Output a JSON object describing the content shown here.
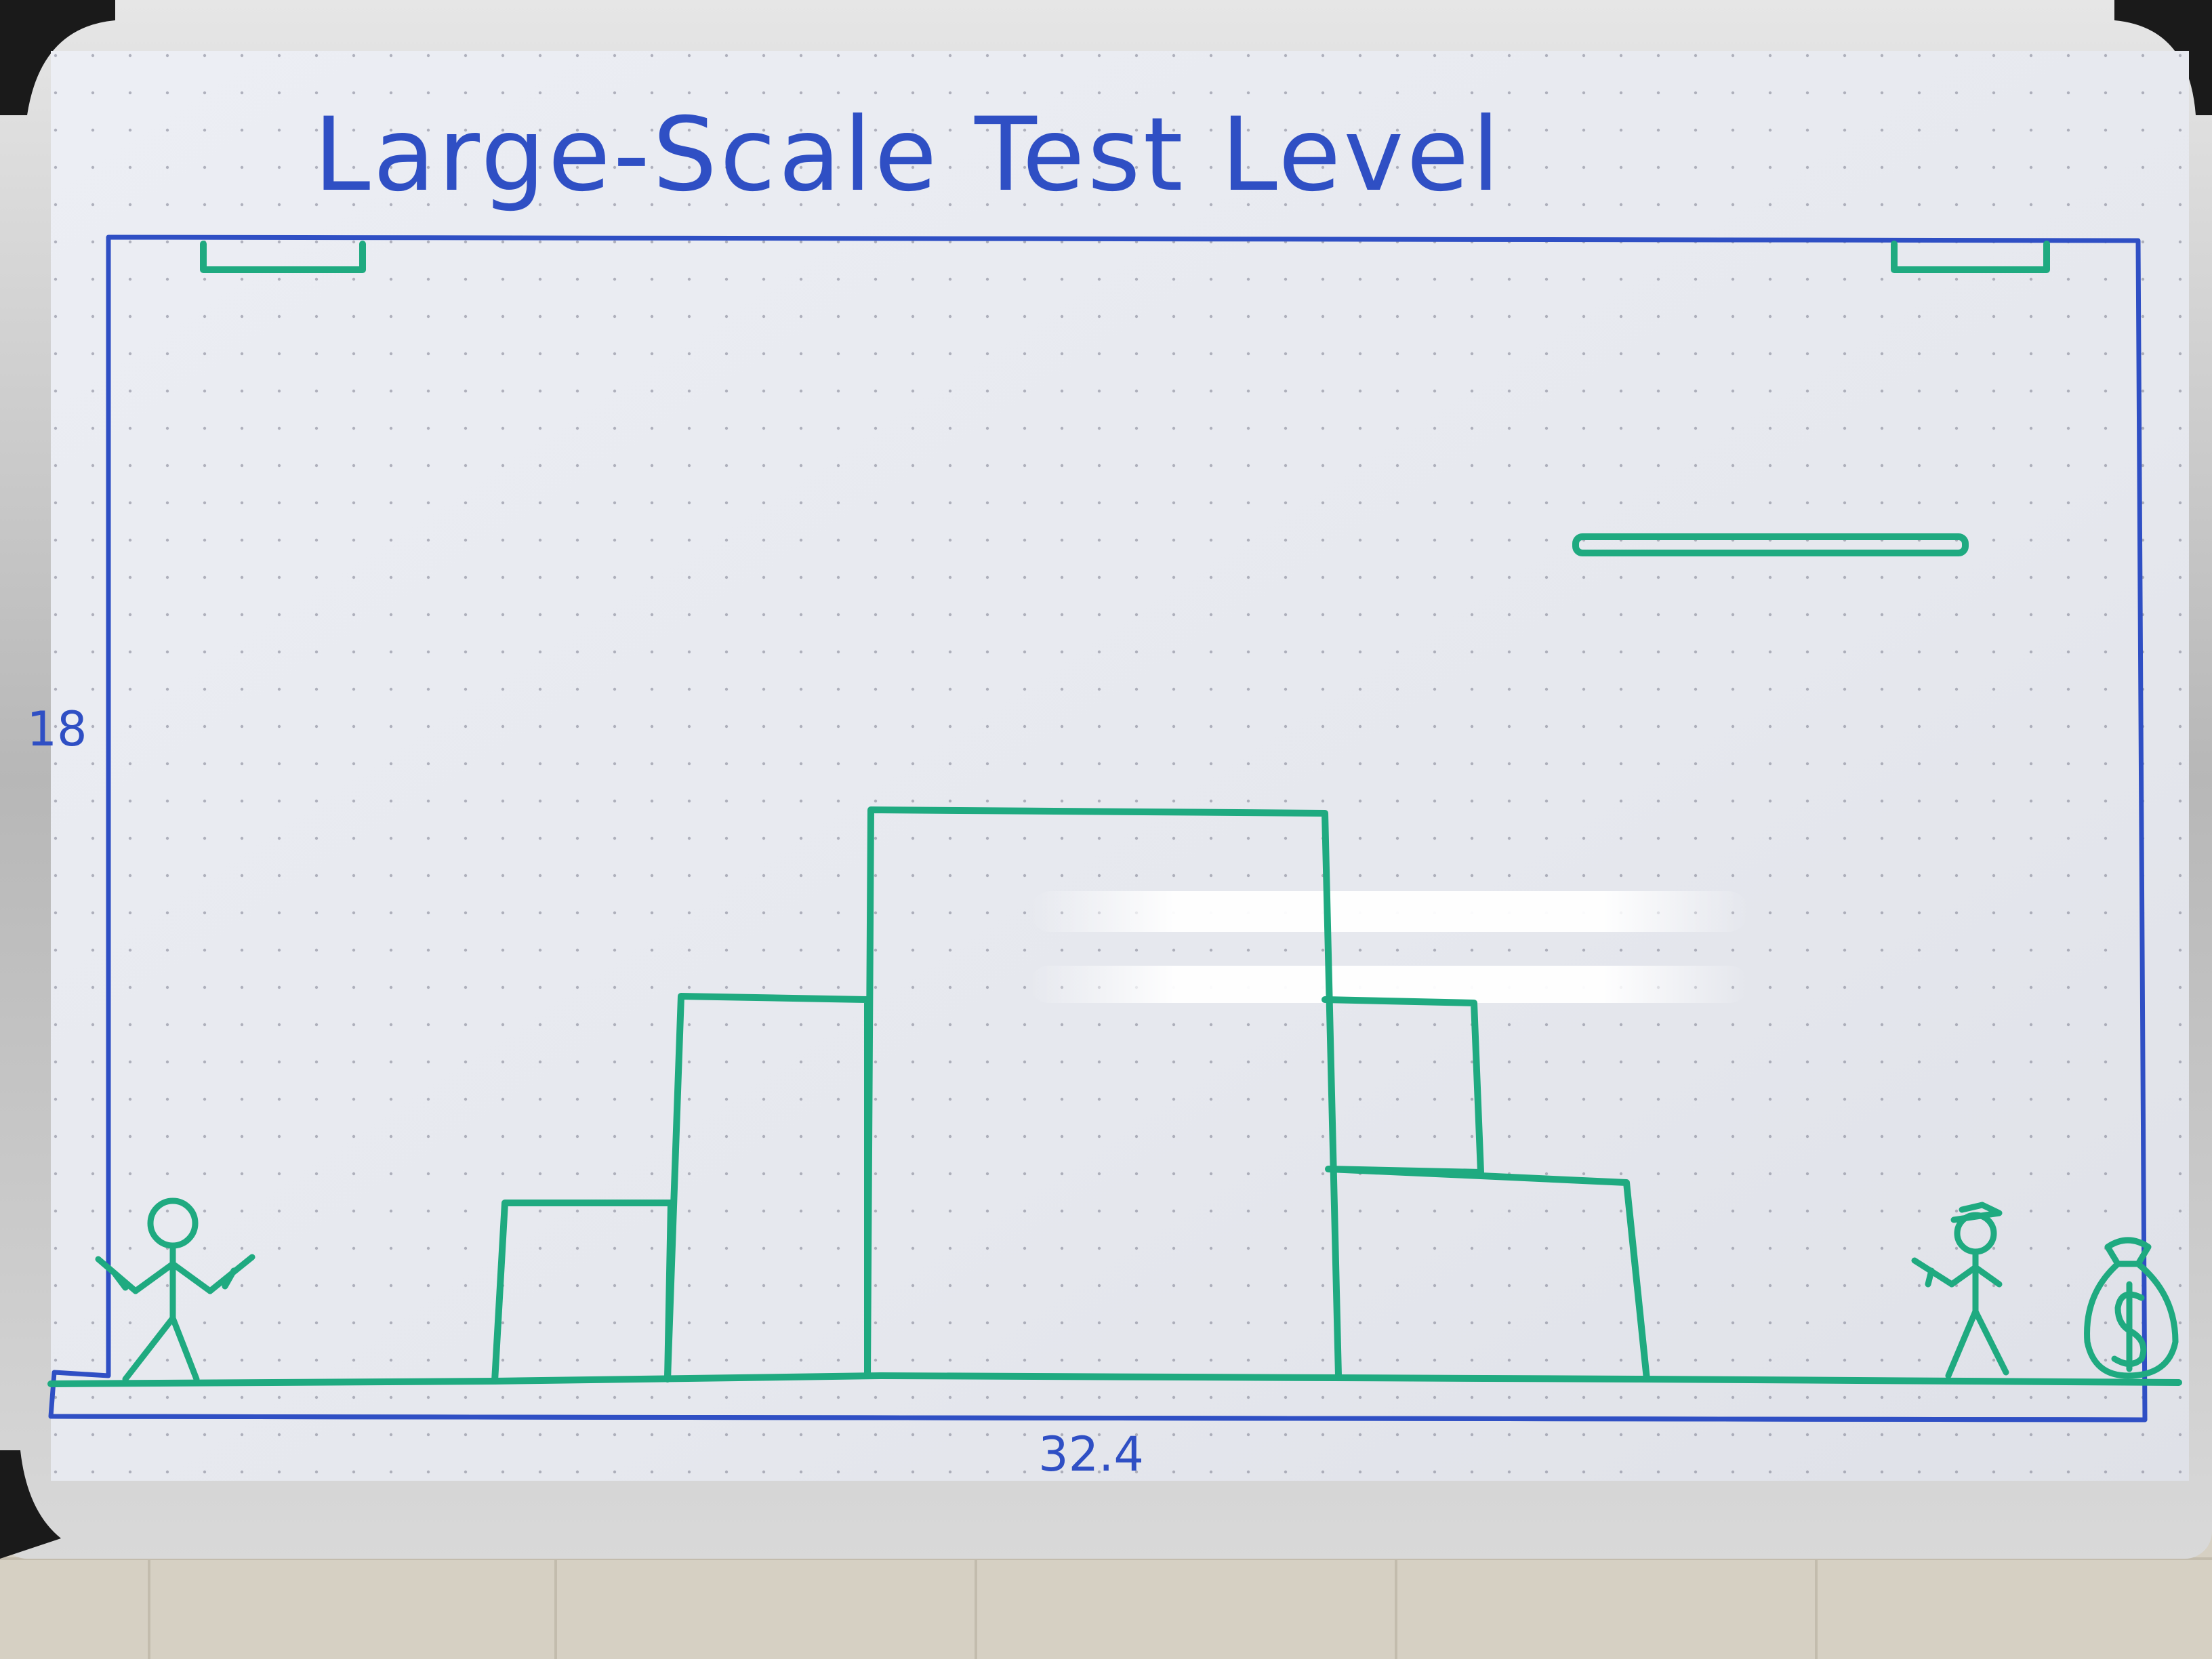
{
  "title": "Large-Scale Test Level",
  "level": {
    "height_label": "18",
    "width_label": "32.4"
  },
  "sketch_elements": {
    "player": "stick-figure-player-with-two-guns",
    "enemy": "stick-figure-enemy-with-hat-and-gun",
    "goal": "money-bag-icon"
  },
  "colors": {
    "board": "#e8e9ef",
    "blue_marker": "#2f4fc4",
    "green_marker": "#1faa80",
    "frame": "#c9c9c9",
    "wall_tiles": "#d4cfc4"
  }
}
